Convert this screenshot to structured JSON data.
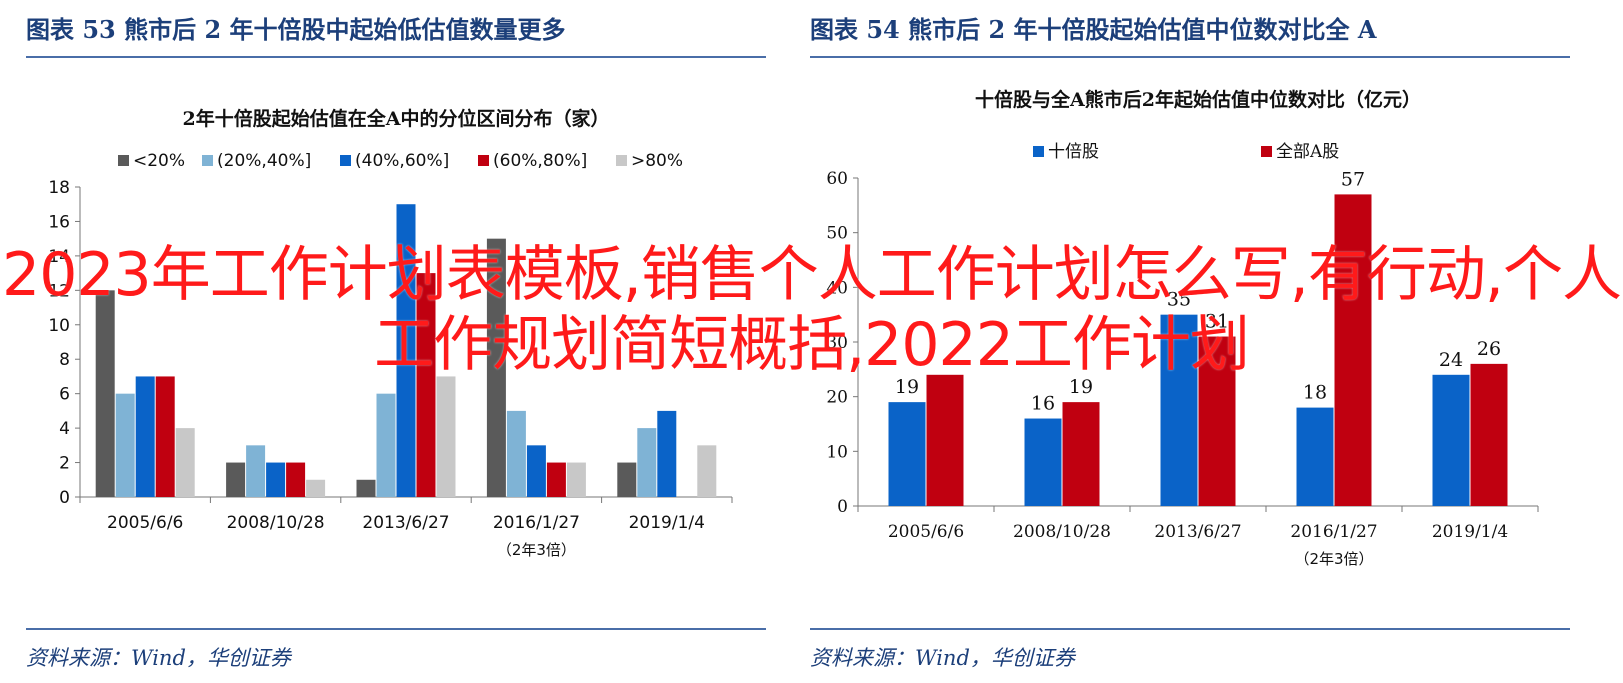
{
  "figures": [
    {
      "header": "图表  53    熊市后 2 年十倍股中起始低估值数量更多",
      "source": "资料来源：Wind，华创证券"
    },
    {
      "header": "图表  54    熊市后 2 年十倍股起始估值中位数对比全 A",
      "source": "资料来源：Wind，华创证券"
    }
  ],
  "overlay_title": "2023年工作计划表模板,销售个人工作计划怎么写,有行动,个人工作规划简短概括,2022工作计划",
  "chart_data": [
    {
      "type": "bar",
      "title": "2年十倍股起始估值在全A中的分位区间分布（家）",
      "categories": [
        "2005/6/6",
        "2008/10/28",
        "2013/6/27",
        "2016/1/27",
        "2019/1/4"
      ],
      "category_note": {
        "category": "2016/1/27",
        "text": "（2年3倍）"
      },
      "series": [
        {
          "name": "<20%",
          "color": "#5a5a5a",
          "values": [
            12,
            2,
            1,
            15,
            2
          ]
        },
        {
          "name": "(20%,40%]",
          "color": "#7fb3d5",
          "values": [
            6,
            3,
            6,
            5,
            4
          ]
        },
        {
          "name": "(40%,60%]",
          "color": "#0a63c8",
          "values": [
            7,
            2,
            17,
            3,
            5
          ]
        },
        {
          "name": "(60%,80%]",
          "color": "#c00010",
          "values": [
            7,
            2,
            13,
            2,
            0
          ]
        },
        {
          "name": ">80%",
          "color": "#c8c8c8",
          "values": [
            4,
            1,
            7,
            2,
            3
          ]
        }
      ],
      "ylim": [
        0,
        18
      ],
      "yticks": [
        0,
        2,
        4,
        6,
        8,
        10,
        12,
        14,
        16,
        18
      ],
      "legend": "top",
      "grid": false
    },
    {
      "type": "bar",
      "title": "十倍股与全A熊市后2年起始估值中位数对比（亿元）",
      "categories": [
        "2005/6/6",
        "2008/10/28",
        "2013/6/27",
        "2016/1/27",
        "2019/1/4"
      ],
      "category_note": {
        "category": "2016/1/27",
        "text": "（2年3倍）"
      },
      "series": [
        {
          "name": "十倍股",
          "color": "#0a63c8",
          "values": [
            19,
            16,
            35,
            18,
            24
          ]
        },
        {
          "name": "全部A股",
          "color": "#c00010",
          "values": [
            24,
            19,
            31,
            57,
            26
          ]
        }
      ],
      "data_labels": [
        [
          "19",
          "16",
          "35",
          "18",
          "24"
        ],
        [
          "",
          "19",
          "31",
          "57",
          "26"
        ]
      ],
      "ylim": [
        0,
        60
      ],
      "yticks": [
        0,
        10,
        20,
        30,
        40,
        50,
        60
      ],
      "legend": "top",
      "grid": false
    }
  ]
}
